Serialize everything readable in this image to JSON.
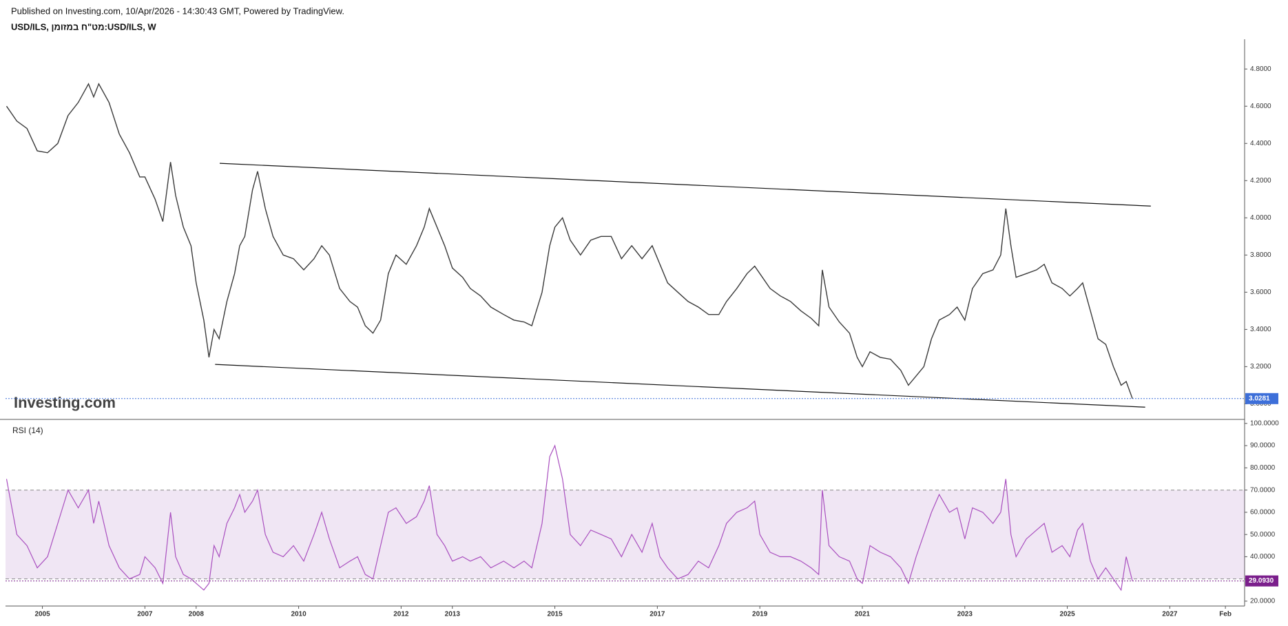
{
  "header": {
    "published": "Published on Investing.com, 10/Apr/2026 - 14:30:43 GMT, Powered by TradingView.",
    "symbol": "USD/ILS, מט\"ח במזומן:USD/ILS, W"
  },
  "chart_data": [
    {
      "type": "line",
      "watermark": "Investing.com",
      "color": "#3a3a3a",
      "last_color": "#3d6fd9",
      "last_value_label": "3.0281",
      "xlim": [
        2004.28,
        2028.46
      ],
      "ylim": [
        2.92,
        4.96
      ],
      "yticks": [
        {
          "value": 3.0,
          "label": "3.0000"
        },
        {
          "value": 3.2,
          "label": "3.2000"
        },
        {
          "value": 3.4,
          "label": "3.4000"
        },
        {
          "value": 3.6,
          "label": "3.6000"
        },
        {
          "value": 3.8,
          "label": "3.8000"
        },
        {
          "value": 4.0,
          "label": "4.0000"
        },
        {
          "value": 4.2,
          "label": "4.2000"
        },
        {
          "value": 4.4,
          "label": "4.4000"
        },
        {
          "value": 4.6,
          "label": "4.6000"
        },
        {
          "value": 4.8,
          "label": "4.8000"
        }
      ],
      "x": [
        2004.3,
        2004.5,
        2004.7,
        2004.9,
        2005.1,
        2005.3,
        2005.5,
        2005.7,
        2005.9,
        2006.0,
        2006.1,
        2006.3,
        2006.5,
        2006.7,
        2006.9,
        2007.0,
        2007.2,
        2007.35,
        2007.5,
        2007.6,
        2007.75,
        2007.9,
        2008.0,
        2008.15,
        2008.25,
        2008.35,
        2008.45,
        2008.6,
        2008.75,
        2008.85,
        2008.95,
        2009.1,
        2009.2,
        2009.35,
        2009.5,
        2009.7,
        2009.9,
        2010.1,
        2010.3,
        2010.45,
        2010.6,
        2010.8,
        2011.0,
        2011.15,
        2011.3,
        2011.45,
        2011.6,
        2011.75,
        2011.9,
        2012.1,
        2012.3,
        2012.45,
        2012.55,
        2012.7,
        2012.85,
        2013.0,
        2013.2,
        2013.35,
        2013.55,
        2013.75,
        2014.0,
        2014.2,
        2014.4,
        2014.55,
        2014.75,
        2014.9,
        2015.0,
        2015.15,
        2015.3,
        2015.5,
        2015.7,
        2015.9,
        2016.1,
        2016.3,
        2016.5,
        2016.7,
        2016.9,
        2017.05,
        2017.2,
        2017.4,
        2017.6,
        2017.8,
        2018.0,
        2018.2,
        2018.35,
        2018.55,
        2018.75,
        2018.9,
        2019.0,
        2019.2,
        2019.4,
        2019.6,
        2019.8,
        2020.0,
        2020.15,
        2020.22,
        2020.35,
        2020.55,
        2020.75,
        2020.9,
        2021.0,
        2021.15,
        2021.35,
        2021.55,
        2021.75,
        2021.9,
        2022.05,
        2022.2,
        2022.35,
        2022.5,
        2022.7,
        2022.85,
        2023.0,
        2023.15,
        2023.35,
        2023.55,
        2023.7,
        2023.8,
        2023.9,
        2024.0,
        2024.2,
        2024.4,
        2024.55,
        2024.7,
        2024.9,
        2025.05,
        2025.2,
        2025.3,
        2025.45,
        2025.6,
        2025.75,
        2025.9,
        2026.05,
        2026.15,
        2026.27
      ],
      "values": [
        4.6,
        4.52,
        4.48,
        4.36,
        4.35,
        4.4,
        4.55,
        4.62,
        4.72,
        4.65,
        4.72,
        4.62,
        4.45,
        4.35,
        4.22,
        4.22,
        4.1,
        3.98,
        4.3,
        4.12,
        3.95,
        3.85,
        3.65,
        3.45,
        3.25,
        3.4,
        3.35,
        3.55,
        3.7,
        3.85,
        3.9,
        4.15,
        4.25,
        4.05,
        3.9,
        3.8,
        3.78,
        3.72,
        3.78,
        3.85,
        3.8,
        3.62,
        3.55,
        3.52,
        3.42,
        3.38,
        3.45,
        3.7,
        3.8,
        3.75,
        3.85,
        3.95,
        4.05,
        3.95,
        3.85,
        3.73,
        3.68,
        3.62,
        3.58,
        3.52,
        3.48,
        3.45,
        3.44,
        3.42,
        3.6,
        3.85,
        3.95,
        4.0,
        3.88,
        3.8,
        3.88,
        3.9,
        3.9,
        3.78,
        3.85,
        3.78,
        3.85,
        3.75,
        3.65,
        3.6,
        3.55,
        3.52,
        3.48,
        3.48,
        3.55,
        3.62,
        3.7,
        3.74,
        3.7,
        3.62,
        3.58,
        3.55,
        3.5,
        3.46,
        3.42,
        3.72,
        3.52,
        3.44,
        3.38,
        3.25,
        3.2,
        3.28,
        3.25,
        3.24,
        3.18,
        3.1,
        3.15,
        3.2,
        3.35,
        3.45,
        3.48,
        3.52,
        3.45,
        3.62,
        3.7,
        3.72,
        3.8,
        4.05,
        3.85,
        3.68,
        3.7,
        3.72,
        3.75,
        3.65,
        3.62,
        3.58,
        3.62,
        3.65,
        3.5,
        3.35,
        3.32,
        3.2,
        3.1,
        3.12,
        3.0281
      ],
      "trendlines": [
        {
          "x": [
            2008.46,
            2026.63
          ],
          "y": [
            4.293,
            4.063
          ]
        },
        {
          "x": [
            2008.37,
            2026.52
          ],
          "y": [
            3.212,
            2.982
          ]
        }
      ]
    },
    {
      "type": "line",
      "title": "RSI (14)",
      "color": "#a94fbf",
      "last_color": "#7b1f8c",
      "last_value_label": "29.0930",
      "band": [
        30,
        70
      ],
      "xlim": [
        2004.28,
        2028.46
      ],
      "ylim": [
        17.8,
        101.5
      ],
      "yticks": [
        {
          "value": 20,
          "label": "20.0000"
        },
        {
          "value": 30,
          "label": "30.0000"
        },
        {
          "value": 40,
          "label": "40.0000"
        },
        {
          "value": 50,
          "label": "50.0000"
        },
        {
          "value": 60,
          "label": "60.0000"
        },
        {
          "value": 70,
          "label": "70.0000"
        },
        {
          "value": 80,
          "label": "80.0000"
        },
        {
          "value": 90,
          "label": "90.0000"
        },
        {
          "value": 100,
          "label": "100.0000"
        }
      ],
      "xticks": [
        2005,
        2007,
        2008,
        2010,
        2012,
        2013,
        2015,
        2017,
        2019,
        2021,
        2023,
        2025,
        2027,
        {
          "value": 2028.085,
          "label": "Feb"
        }
      ],
      "x": [
        2004.3,
        2004.5,
        2004.7,
        2004.9,
        2005.1,
        2005.3,
        2005.5,
        2005.7,
        2005.9,
        2006.0,
        2006.1,
        2006.3,
        2006.5,
        2006.7,
        2006.9,
        2007.0,
        2007.2,
        2007.35,
        2007.5,
        2007.6,
        2007.75,
        2007.9,
        2008.0,
        2008.15,
        2008.25,
        2008.35,
        2008.45,
        2008.6,
        2008.75,
        2008.85,
        2008.95,
        2009.1,
        2009.2,
        2009.35,
        2009.5,
        2009.7,
        2009.9,
        2010.1,
        2010.3,
        2010.45,
        2010.6,
        2010.8,
        2011.0,
        2011.15,
        2011.3,
        2011.45,
        2011.6,
        2011.75,
        2011.9,
        2012.1,
        2012.3,
        2012.45,
        2012.55,
        2012.7,
        2012.85,
        2013.0,
        2013.2,
        2013.35,
        2013.55,
        2013.75,
        2014.0,
        2014.2,
        2014.4,
        2014.55,
        2014.75,
        2014.9,
        2015.0,
        2015.15,
        2015.3,
        2015.5,
        2015.7,
        2015.9,
        2016.1,
        2016.3,
        2016.5,
        2016.7,
        2016.9,
        2017.05,
        2017.2,
        2017.4,
        2017.6,
        2017.8,
        2018.0,
        2018.2,
        2018.35,
        2018.55,
        2018.75,
        2018.9,
        2019.0,
        2019.2,
        2019.4,
        2019.6,
        2019.8,
        2020.0,
        2020.15,
        2020.22,
        2020.35,
        2020.55,
        2020.75,
        2020.9,
        2021.0,
        2021.15,
        2021.35,
        2021.55,
        2021.75,
        2021.9,
        2022.05,
        2022.2,
        2022.35,
        2022.5,
        2022.7,
        2022.85,
        2023.0,
        2023.15,
        2023.35,
        2023.55,
        2023.7,
        2023.8,
        2023.9,
        2024.0,
        2024.2,
        2024.4,
        2024.55,
        2024.7,
        2024.9,
        2025.05,
        2025.2,
        2025.3,
        2025.45,
        2025.6,
        2025.75,
        2025.9,
        2026.05,
        2026.15,
        2026.27
      ],
      "values": [
        75,
        50,
        45,
        35,
        40,
        55,
        70,
        62,
        70,
        55,
        65,
        45,
        35,
        30,
        32,
        40,
        35,
        28,
        60,
        40,
        32,
        30,
        28,
        25,
        28,
        45,
        40,
        55,
        62,
        68,
        60,
        65,
        70,
        50,
        42,
        40,
        45,
        38,
        50,
        60,
        48,
        35,
        38,
        40,
        32,
        30,
        45,
        60,
        62,
        55,
        58,
        65,
        72,
        50,
        45,
        38,
        40,
        38,
        40,
        35,
        38,
        35,
        38,
        35,
        55,
        85,
        90,
        75,
        50,
        45,
        52,
        50,
        48,
        40,
        50,
        42,
        55,
        40,
        35,
        30,
        32,
        38,
        35,
        45,
        55,
        60,
        62,
        65,
        50,
        42,
        40,
        40,
        38,
        35,
        32,
        70,
        45,
        40,
        38,
        30,
        28,
        45,
        42,
        40,
        35,
        28,
        40,
        50,
        60,
        68,
        60,
        62,
        48,
        62,
        60,
        55,
        60,
        75,
        50,
        40,
        48,
        52,
        55,
        42,
        45,
        40,
        52,
        55,
        38,
        30,
        35,
        30,
        25,
        40,
        29.093
      ]
    }
  ]
}
